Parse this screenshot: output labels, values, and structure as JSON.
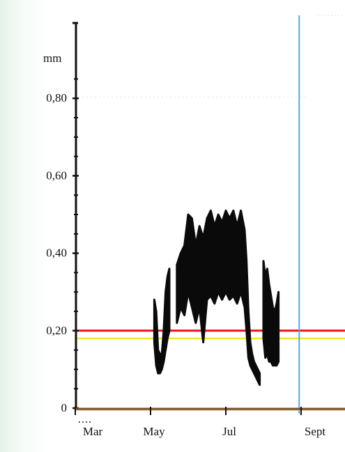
{
  "chart_data": {
    "type": "line",
    "title": "",
    "xlabel": "",
    "ylabel": "mm",
    "ylim": [
      0,
      0.9
    ],
    "xlim": [
      3.0,
      9.5
    ],
    "grid": false,
    "y_ticks": [
      {
        "value": 0.0,
        "label": "0"
      },
      {
        "value": 0.2,
        "label": "0,20"
      },
      {
        "value": 0.4,
        "label": "0,40"
      },
      {
        "value": 0.6,
        "label": "0,60"
      },
      {
        "value": 0.8,
        "label": "0,80"
      }
    ],
    "x_ticks": [
      {
        "value": 3.0,
        "label": "Mar"
      },
      {
        "value": 5.0,
        "label": "May"
      },
      {
        "value": 7.0,
        "label": "Jul"
      },
      {
        "value": 9.0,
        "label": "Sept"
      }
    ],
    "reference_lines": [
      {
        "axis": "y",
        "value": 0.2,
        "color": "#e8141c"
      },
      {
        "axis": "y",
        "value": 0.18,
        "color": "#f2e830"
      },
      {
        "axis": "x",
        "value": 8.95,
        "color": "#5aa8d8"
      }
    ],
    "series": [
      {
        "color": "#0a0a0a",
        "segments": [
          [
            {
              "x": 5.1,
              "y": 0.17,
              "hi": 0.28
            },
            {
              "x": 5.15,
              "y": 0.11,
              "hi": 0.25
            },
            {
              "x": 5.2,
              "y": 0.09,
              "hi": 0.15
            },
            {
              "x": 5.25,
              "y": 0.09,
              "hi": 0.14
            },
            {
              "x": 5.3,
              "y": 0.1,
              "hi": 0.14
            },
            {
              "x": 5.35,
              "y": 0.12,
              "hi": 0.2
            },
            {
              "x": 5.4,
              "y": 0.15,
              "hi": 0.3
            },
            {
              "x": 5.45,
              "y": 0.18,
              "hi": 0.34
            },
            {
              "x": 5.5,
              "y": 0.2,
              "hi": 0.36
            }
          ],
          [
            {
              "x": 5.7,
              "y": 0.22,
              "hi": 0.37
            },
            {
              "x": 5.8,
              "y": 0.26,
              "hi": 0.4
            },
            {
              "x": 5.9,
              "y": 0.24,
              "hi": 0.42
            },
            {
              "x": 6.0,
              "y": 0.3,
              "hi": 0.5
            },
            {
              "x": 6.1,
              "y": 0.26,
              "hi": 0.49
            },
            {
              "x": 6.2,
              "y": 0.22,
              "hi": 0.42
            },
            {
              "x": 6.3,
              "y": 0.26,
              "hi": 0.47
            },
            {
              "x": 6.4,
              "y": 0.17,
              "hi": 0.44
            },
            {
              "x": 6.5,
              "y": 0.28,
              "hi": 0.49
            },
            {
              "x": 6.6,
              "y": 0.29,
              "hi": 0.51
            },
            {
              "x": 6.7,
              "y": 0.27,
              "hi": 0.47
            },
            {
              "x": 6.8,
              "y": 0.3,
              "hi": 0.5
            },
            {
              "x": 6.9,
              "y": 0.28,
              "hi": 0.48
            },
            {
              "x": 7.0,
              "y": 0.3,
              "hi": 0.51
            },
            {
              "x": 7.1,
              "y": 0.28,
              "hi": 0.49
            },
            {
              "x": 7.2,
              "y": 0.29,
              "hi": 0.51
            },
            {
              "x": 7.3,
              "y": 0.27,
              "hi": 0.47
            },
            {
              "x": 7.4,
              "y": 0.3,
              "hi": 0.51
            },
            {
              "x": 7.5,
              "y": 0.26,
              "hi": 0.46
            },
            {
              "x": 7.55,
              "y": 0.2,
              "hi": 0.38
            },
            {
              "x": 7.6,
              "y": 0.13,
              "hi": 0.25
            },
            {
              "x": 7.65,
              "y": 0.11,
              "hi": 0.17
            },
            {
              "x": 7.7,
              "y": 0.1,
              "hi": 0.14
            },
            {
              "x": 7.75,
              "y": 0.09,
              "hi": 0.12
            },
            {
              "x": 7.8,
              "y": 0.08,
              "hi": 0.11
            },
            {
              "x": 7.85,
              "y": 0.07,
              "hi": 0.1
            },
            {
              "x": 7.9,
              "y": 0.06,
              "hi": 0.09
            }
          ],
          [
            {
              "x": 8.0,
              "y": 0.18,
              "hi": 0.38
            },
            {
              "x": 8.05,
              "y": 0.13,
              "hi": 0.34
            },
            {
              "x": 8.1,
              "y": 0.14,
              "hi": 0.36
            },
            {
              "x": 8.15,
              "y": 0.12,
              "hi": 0.32
            },
            {
              "x": 8.2,
              "y": 0.12,
              "hi": 0.29
            },
            {
              "x": 8.25,
              "y": 0.11,
              "hi": 0.26
            },
            {
              "x": 8.3,
              "y": 0.11,
              "hi": 0.25
            },
            {
              "x": 8.35,
              "y": 0.11,
              "hi": 0.27
            },
            {
              "x": 8.4,
              "y": 0.12,
              "hi": 0.3
            }
          ]
        ]
      }
    ]
  }
}
